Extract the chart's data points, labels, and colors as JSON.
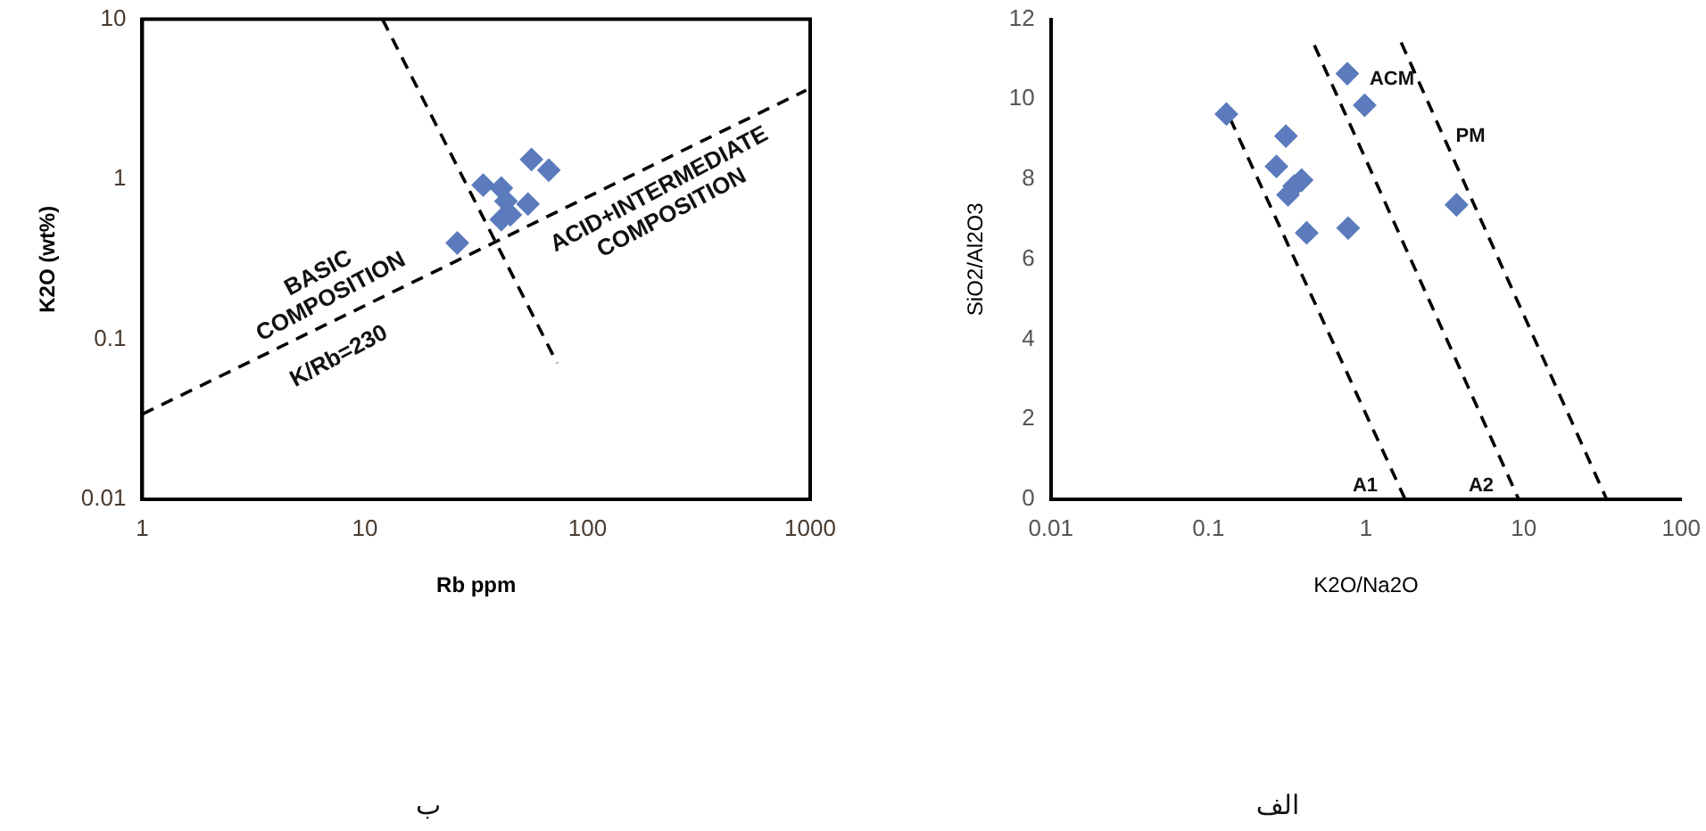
{
  "chart_data": [
    {
      "type": "scatter",
      "xlabel": "Rb ppm",
      "ylabel": "K2O (wt%)",
      "log": "xy",
      "xlim": [
        1,
        1000
      ],
      "ylim": [
        0.01,
        10
      ],
      "xticks": [
        1,
        10,
        100,
        1000
      ],
      "yticks": [
        0.01,
        0.1,
        1,
        10
      ],
      "marker": "diamond",
      "series": [
        {
          "type": "scatter",
          "color": "#5b7bbd",
          "x": [
            26,
            34,
            41,
            43,
            41,
            48,
            54,
            45,
            56,
            63,
            67
          ],
          "values": [
            0.4,
            0.92,
            0.88,
            0.73,
            0.56,
            null,
            0.7,
            0.6,
            1.33,
            null,
            1.14
          ]
        },
        {
          "type": "line",
          "color": "#000000",
          "line_style": "dashed",
          "marker": "none",
          "x": [
            1,
            960
          ],
          "values": [
            0.034,
            3.6
          ]
        },
        {
          "type": "line",
          "color": "#000000",
          "line_style": "dashed",
          "marker": "none",
          "x": [
            12,
            73
          ],
          "values": [
            10,
            0.071
          ]
        }
      ],
      "annotations": [
        "BASIC\nCOMPOSITION",
        "K/Rb=230",
        "ACID+INTERMEDIATE\nCOMPOSITION",
        "ب"
      ]
    },
    {
      "type": "scatter",
      "xlabel": "K2O/Na2O",
      "ylabel": "SiO2/Al2O3",
      "log": "x",
      "xlim": [
        0.01,
        100
      ],
      "ylim": [
        0,
        12
      ],
      "xticks": [
        0.01,
        0.1,
        1,
        10,
        100
      ],
      "yticks": [
        0,
        2,
        4,
        6,
        8,
        10,
        12
      ],
      "marker": "diamond",
      "series": [
        {
          "type": "scatter",
          "color": "#5b7bbd",
          "x": [
            0.13,
            0.31,
            0.27,
            0.39,
            0.35,
            0.32,
            0.42,
            0.77,
            0.76,
            0.98,
            3.75
          ],
          "values": [
            9.63,
            9.08,
            8.32,
            7.98,
            7.83,
            7.61,
            6.66,
            6.78,
            10.64,
            9.85,
            7.36
          ]
        },
        {
          "type": "line",
          "color": "#000000",
          "line_style": "dashed",
          "marker": "none",
          "x": [
            0.137,
            1.77
          ],
          "values": [
            9.52,
            0
          ]
        },
        {
          "type": "line",
          "color": "#000000",
          "line_style": "dashed",
          "marker": "none",
          "x": [
            0.47,
            9.3
          ],
          "values": [
            11.35,
            0
          ]
        },
        {
          "type": "line",
          "color": "#000000",
          "line_style": "dashed",
          "marker": "none",
          "x": [
            1.67,
            33.6
          ],
          "values": [
            11.42,
            0
          ]
        }
      ],
      "annotations": [
        "A1",
        "A2",
        "ACM",
        "PM",
        "الف"
      ]
    }
  ]
}
